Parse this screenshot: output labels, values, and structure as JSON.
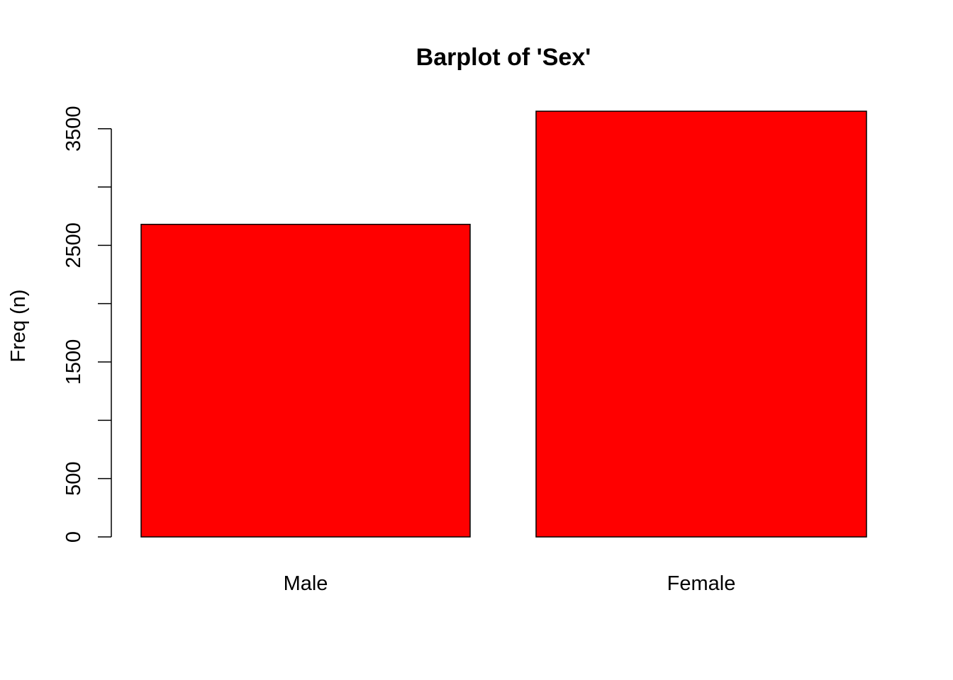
{
  "chart_data": {
    "type": "bar",
    "title": "Barplot of 'Sex'",
    "xlabel": "",
    "ylabel": "Freq (n)",
    "categories": [
      "Male",
      "Female"
    ],
    "values": [
      2680,
      3650
    ],
    "ylim": [
      0,
      3650
    ],
    "y_ticks": [
      0,
      500,
      1000,
      1500,
      2000,
      2500,
      3000,
      3500
    ],
    "y_tick_labels": [
      "0",
      "500",
      "",
      "1500",
      "",
      "2500",
      "",
      "3500"
    ],
    "bar_color": "#ff0000",
    "bar_border_color": "#000000",
    "grid": false,
    "legend": "none"
  }
}
